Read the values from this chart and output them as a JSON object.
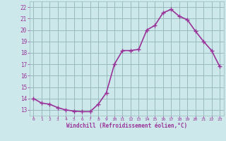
{
  "x": [
    0,
    1,
    2,
    3,
    4,
    5,
    6,
    7,
    8,
    9,
    10,
    11,
    12,
    13,
    14,
    15,
    16,
    17,
    18,
    19,
    20,
    21,
    22,
    23
  ],
  "y": [
    14.0,
    13.6,
    13.5,
    13.2,
    13.0,
    12.9,
    12.85,
    12.85,
    13.5,
    14.5,
    17.0,
    18.2,
    18.2,
    18.3,
    20.0,
    20.4,
    21.5,
    21.8,
    21.2,
    20.9,
    19.9,
    19.0,
    18.2,
    16.8
  ],
  "line_color": "#993399",
  "marker": "+",
  "marker_size": 4,
  "bg_color": "#cce8ea",
  "grid_color": "#99bbbd",
  "xlabel": "Windchill (Refroidissement éolien,°C)",
  "xlabel_color": "#993399",
  "tick_color": "#993399",
  "ylabel_ticks": [
    13,
    14,
    15,
    16,
    17,
    18,
    19,
    20,
    21,
    22
  ],
  "xlim": [
    -0.5,
    23.5
  ],
  "ylim": [
    12.5,
    22.5
  ],
  "xticks": [
    0,
    1,
    2,
    3,
    4,
    5,
    6,
    7,
    8,
    9,
    10,
    11,
    12,
    13,
    14,
    15,
    16,
    17,
    18,
    19,
    20,
    21,
    22,
    23
  ],
  "line_width": 1.2,
  "marker_color": "#993399"
}
